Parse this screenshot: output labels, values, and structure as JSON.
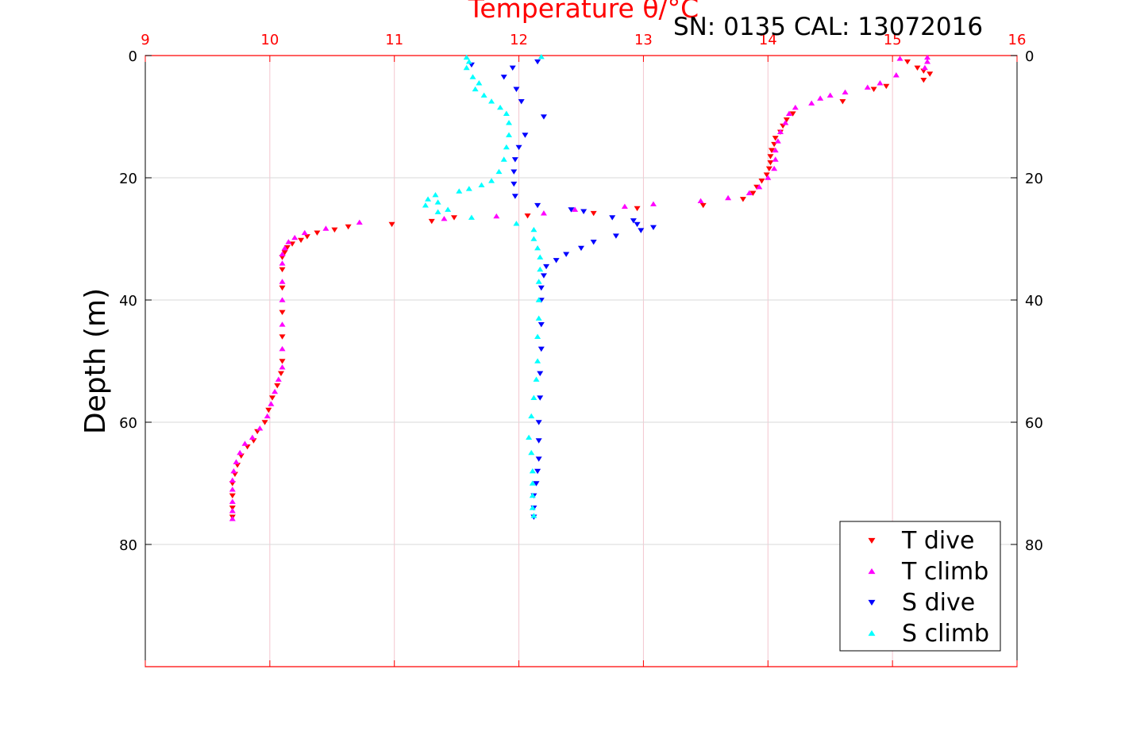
{
  "chart_data": {
    "type": "scatter",
    "title": "Temperature θ/°C",
    "annotation": "SN: 0135  CAL: 13072016",
    "ylabel": "Depth (m)",
    "xlim": [
      9,
      16
    ],
    "ylim": [
      0,
      100
    ],
    "y_reversed": true,
    "x_ticks": [
      "9",
      "10",
      "11",
      "12",
      "13",
      "14",
      "15",
      "16"
    ],
    "y_ticks": [
      "0",
      "20",
      "40",
      "60",
      "80"
    ],
    "x_axis_position": "top",
    "grid": true,
    "legend_position": "bottom-right",
    "colors": {
      "axis_top": "#ff0000",
      "grid": "#f4c6cf",
      "t_dive": "#ff0000",
      "t_climb": "#ff00ff",
      "s_dive": "#0000ff",
      "s_climb": "#00ffff"
    },
    "legend": [
      {
        "label": "T dive",
        "marker": "down"
      },
      {
        "label": "T climb",
        "marker": "up"
      },
      {
        "label": "S dive",
        "marker": "down"
      },
      {
        "label": "S climb",
        "marker": "up"
      }
    ],
    "series": [
      {
        "name": "T dive",
        "marker": "down",
        "color": "#ff0000",
        "points": [
          [
            15.12,
            1
          ],
          [
            15.2,
            2
          ],
          [
            15.25,
            2.5
          ],
          [
            15.3,
            3
          ],
          [
            15.25,
            4
          ],
          [
            14.95,
            5
          ],
          [
            14.85,
            5.5
          ],
          [
            14.6,
            7.5
          ],
          [
            14.2,
            9.5
          ],
          [
            14.15,
            10.5
          ],
          [
            14.12,
            11.5
          ],
          [
            14.1,
            12.5
          ],
          [
            14.06,
            13.5
          ],
          [
            14.05,
            14.5
          ],
          [
            14.03,
            15.5
          ],
          [
            14.02,
            16.5
          ],
          [
            14.02,
            17.5
          ],
          [
            14.01,
            18.5
          ],
          [
            13.99,
            19.5
          ],
          [
            13.95,
            20.5
          ],
          [
            13.91,
            21.5
          ],
          [
            13.88,
            22.5
          ],
          [
            13.8,
            23.5
          ],
          [
            13.48,
            24.5
          ],
          [
            12.95,
            25
          ],
          [
            12.6,
            25.8
          ],
          [
            12.07,
            26.2
          ],
          [
            11.48,
            26.5
          ],
          [
            11.3,
            27.1
          ],
          [
            10.98,
            27.6
          ],
          [
            10.63,
            28
          ],
          [
            10.52,
            28.5
          ],
          [
            10.38,
            29
          ],
          [
            10.3,
            29.6
          ],
          [
            10.25,
            30.2
          ],
          [
            10.18,
            30.8
          ],
          [
            10.14,
            31.4
          ],
          [
            10.12,
            32.2
          ],
          [
            10.1,
            33
          ],
          [
            10.1,
            35
          ],
          [
            10.1,
            38
          ],
          [
            10.1,
            42
          ],
          [
            10.1,
            46
          ],
          [
            10.1,
            50
          ],
          [
            10.09,
            52
          ],
          [
            10.06,
            54
          ],
          [
            10.02,
            56
          ],
          [
            9.99,
            58
          ],
          [
            9.96,
            60
          ],
          [
            9.9,
            61.5
          ],
          [
            9.87,
            63
          ],
          [
            9.82,
            64
          ],
          [
            9.77,
            65.5
          ],
          [
            9.74,
            67
          ],
          [
            9.72,
            68.5
          ],
          [
            9.7,
            70
          ],
          [
            9.7,
            72
          ],
          [
            9.7,
            74
          ],
          [
            9.7,
            75.5
          ]
        ]
      },
      {
        "name": "T climb",
        "marker": "up",
        "color": "#ff00ff",
        "points": [
          [
            15.28,
            0.3
          ],
          [
            15.06,
            0.5
          ],
          [
            15.28,
            1
          ],
          [
            15.26,
            2
          ],
          [
            15.03,
            3.2
          ],
          [
            14.9,
            4.5
          ],
          [
            14.8,
            5.2
          ],
          [
            14.62,
            6
          ],
          [
            14.5,
            6.5
          ],
          [
            14.42,
            7
          ],
          [
            14.35,
            7.8
          ],
          [
            14.22,
            8.5
          ],
          [
            14.17,
            9.5
          ],
          [
            14.14,
            11
          ],
          [
            14.1,
            12.5
          ],
          [
            14.08,
            14
          ],
          [
            14.06,
            15.5
          ],
          [
            14.06,
            17
          ],
          [
            14.05,
            18.5
          ],
          [
            14.0,
            20
          ],
          [
            13.93,
            21.5
          ],
          [
            13.85,
            22.5
          ],
          [
            13.68,
            23.3
          ],
          [
            13.46,
            23.8
          ],
          [
            13.08,
            24.3
          ],
          [
            12.85,
            24.7
          ],
          [
            12.45,
            25.2
          ],
          [
            12.2,
            25.8
          ],
          [
            11.82,
            26.3
          ],
          [
            11.4,
            26.7
          ],
          [
            10.72,
            27.3
          ],
          [
            10.45,
            28.3
          ],
          [
            10.28,
            29
          ],
          [
            10.2,
            29.8
          ],
          [
            10.15,
            30.5
          ],
          [
            10.12,
            31.5
          ],
          [
            10.1,
            32.5
          ],
          [
            10.1,
            34
          ],
          [
            10.1,
            37
          ],
          [
            10.1,
            40
          ],
          [
            10.1,
            44
          ],
          [
            10.1,
            48
          ],
          [
            10.1,
            51
          ],
          [
            10.07,
            53
          ],
          [
            10.04,
            55
          ],
          [
            10.01,
            57
          ],
          [
            9.98,
            59
          ],
          [
            9.92,
            61
          ],
          [
            9.86,
            62.5
          ],
          [
            9.8,
            63.5
          ],
          [
            9.76,
            65
          ],
          [
            9.73,
            66.5
          ],
          [
            9.71,
            68
          ],
          [
            9.7,
            69.5
          ],
          [
            9.7,
            71
          ],
          [
            9.7,
            73
          ],
          [
            9.7,
            74.5
          ],
          [
            9.7,
            75.8
          ]
        ]
      },
      {
        "name": "S dive",
        "marker": "down",
        "color": "#0000ff",
        "points": [
          [
            12.15,
            1
          ],
          [
            11.62,
            1.5
          ],
          [
            11.95,
            2
          ],
          [
            11.88,
            3.5
          ],
          [
            11.98,
            5.5
          ],
          [
            12.02,
            7.5
          ],
          [
            12.2,
            10
          ],
          [
            12.05,
            13
          ],
          [
            12.0,
            15
          ],
          [
            11.97,
            17
          ],
          [
            11.96,
            19
          ],
          [
            11.96,
            21
          ],
          [
            11.97,
            23
          ],
          [
            12.15,
            24.5
          ],
          [
            12.42,
            25.2
          ],
          [
            12.52,
            25.5
          ],
          [
            12.75,
            26.5
          ],
          [
            12.92,
            27
          ],
          [
            12.95,
            27.6
          ],
          [
            13.08,
            28.1
          ],
          [
            12.98,
            28.6
          ],
          [
            12.78,
            29.5
          ],
          [
            12.6,
            30.5
          ],
          [
            12.5,
            31.5
          ],
          [
            12.38,
            32.5
          ],
          [
            12.3,
            33.5
          ],
          [
            12.22,
            34.5
          ],
          [
            12.2,
            36
          ],
          [
            12.18,
            38
          ],
          [
            12.18,
            40
          ],
          [
            12.18,
            44
          ],
          [
            12.18,
            48
          ],
          [
            12.17,
            52
          ],
          [
            12.17,
            56
          ],
          [
            12.16,
            60
          ],
          [
            12.16,
            63
          ],
          [
            12.16,
            66
          ],
          [
            12.15,
            68
          ],
          [
            12.14,
            70
          ],
          [
            12.12,
            72
          ],
          [
            12.12,
            74
          ],
          [
            12.12,
            75.5
          ]
        ]
      },
      {
        "name": "S climb",
        "marker": "up",
        "color": "#00ffff",
        "points": [
          [
            11.58,
            0.3
          ],
          [
            12.18,
            0.2
          ],
          [
            11.6,
            1
          ],
          [
            11.58,
            2
          ],
          [
            11.63,
            3.5
          ],
          [
            11.68,
            4.5
          ],
          [
            11.65,
            5.5
          ],
          [
            11.72,
            6.5
          ],
          [
            11.78,
            7.5
          ],
          [
            11.85,
            8.5
          ],
          [
            11.9,
            9.5
          ],
          [
            11.92,
            11
          ],
          [
            11.92,
            13
          ],
          [
            11.9,
            15
          ],
          [
            11.88,
            17
          ],
          [
            11.84,
            19
          ],
          [
            11.78,
            20.5
          ],
          [
            11.7,
            21.2
          ],
          [
            11.6,
            21.8
          ],
          [
            11.52,
            22.2
          ],
          [
            11.33,
            22.8
          ],
          [
            11.27,
            23.5
          ],
          [
            11.35,
            24
          ],
          [
            11.25,
            24.5
          ],
          [
            11.43,
            25.2
          ],
          [
            11.35,
            25.6
          ],
          [
            11.62,
            26.5
          ],
          [
            11.98,
            27.5
          ],
          [
            12.12,
            28.5
          ],
          [
            12.12,
            30
          ],
          [
            12.15,
            31.5
          ],
          [
            12.17,
            33
          ],
          [
            12.17,
            35
          ],
          [
            12.16,
            37
          ],
          [
            12.16,
            40
          ],
          [
            12.16,
            43
          ],
          [
            12.15,
            46
          ],
          [
            12.15,
            50
          ],
          [
            12.14,
            53
          ],
          [
            12.12,
            56
          ],
          [
            12.1,
            59
          ],
          [
            12.08,
            62.5
          ],
          [
            12.1,
            65
          ],
          [
            12.11,
            68
          ],
          [
            12.11,
            70
          ],
          [
            12.11,
            72
          ],
          [
            12.11,
            74
          ],
          [
            12.12,
            75.3
          ]
        ]
      }
    ]
  }
}
